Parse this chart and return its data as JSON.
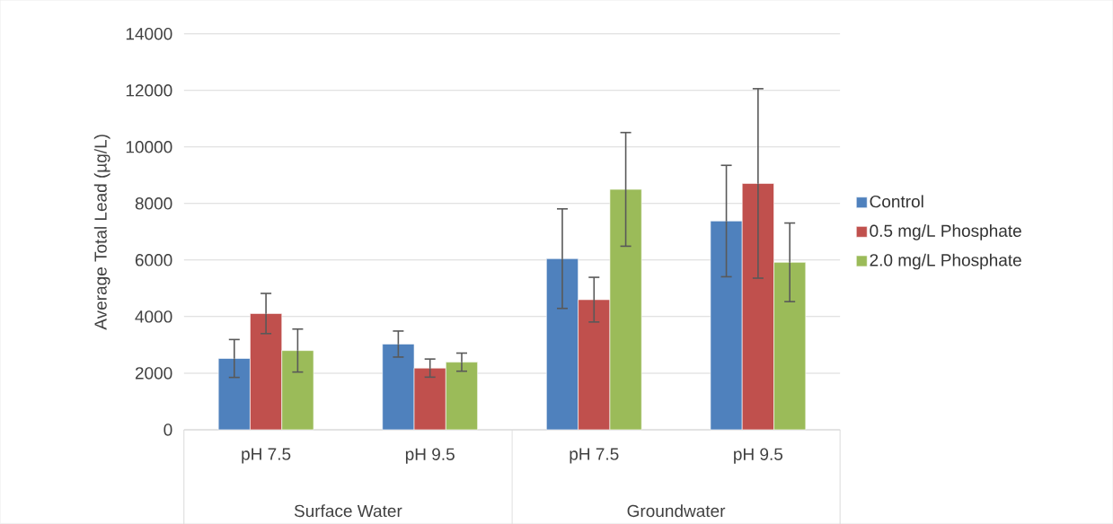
{
  "chart_data": {
    "type": "bar",
    "ylabel": "Average Total Lead (µg/L)",
    "categories": [
      "pH 7.5",
      "pH 9.5",
      "pH 7.5",
      "pH 9.5"
    ],
    "annotations": [
      "Surface Water",
      "Groundwater"
    ],
    "series": [
      {
        "name": "Control",
        "color": "#4f81bd",
        "values": [
          2520,
          3030,
          6050,
          7380
        ],
        "errors": [
          670,
          460,
          1760,
          1970
        ]
      },
      {
        "name": "0.5 mg/L Phosphate",
        "color": "#c0504d",
        "values": [
          4110,
          2180,
          4600,
          8710
        ],
        "errors": [
          710,
          320,
          790,
          3350
        ]
      },
      {
        "name": "2.0 mg/L Phosphate",
        "color": "#9bbb59",
        "values": [
          2800,
          2390,
          8500,
          5920
        ],
        "errors": [
          760,
          320,
          2010,
          1390
        ]
      }
    ],
    "ylim": [
      0,
      14000
    ],
    "yticks": [
      0,
      2000,
      4000,
      6000,
      8000,
      10000,
      12000,
      14000
    ],
    "grid": "y",
    "legend": "right"
  }
}
